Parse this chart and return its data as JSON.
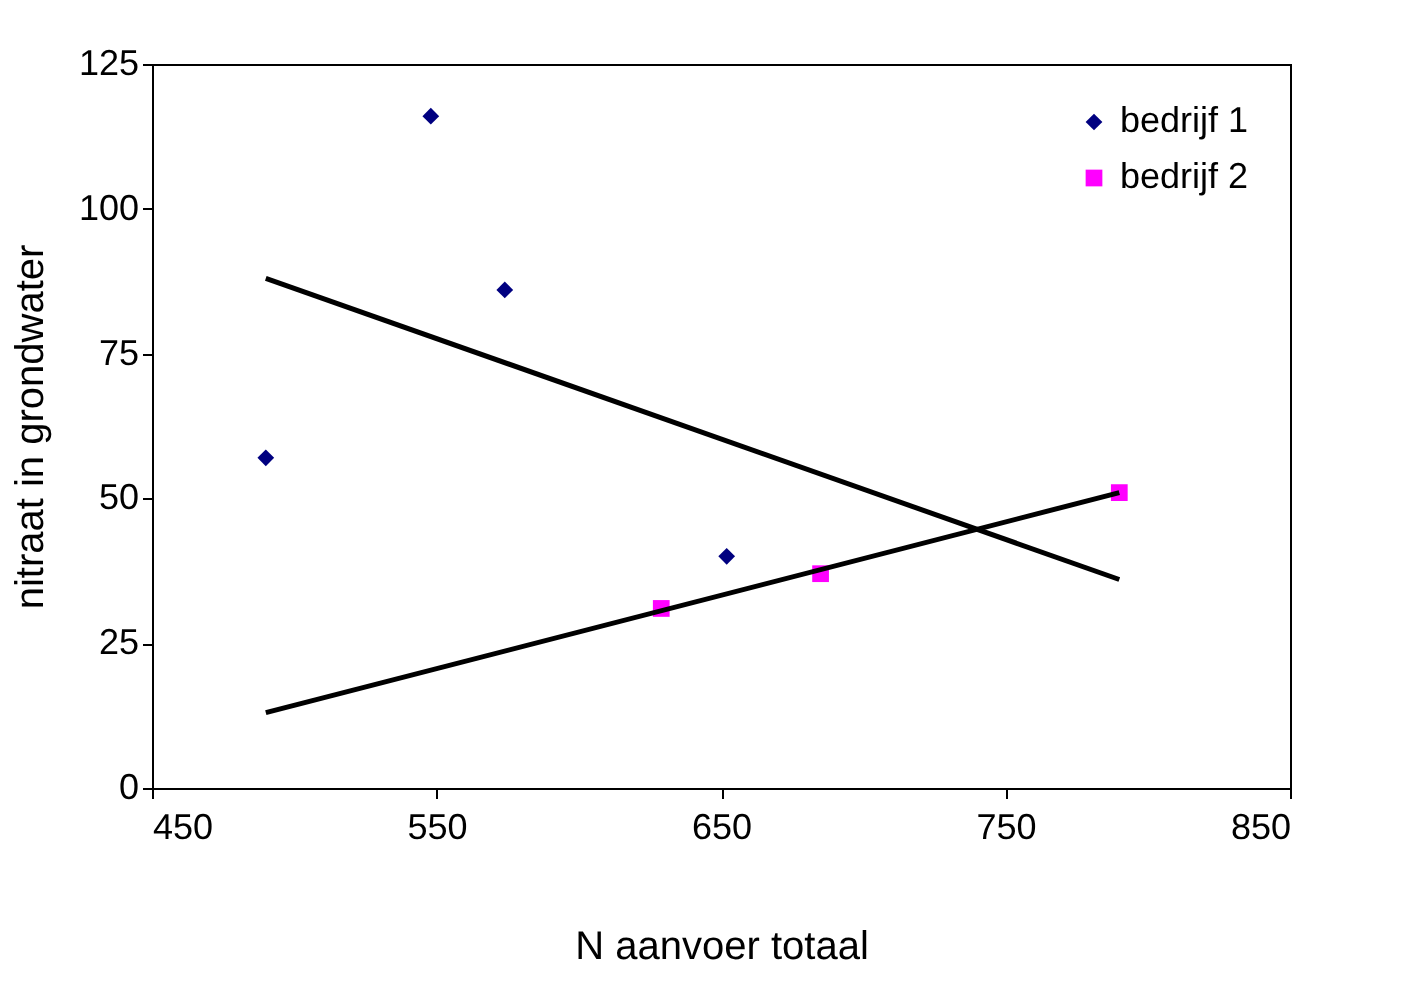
{
  "chart_data": {
    "type": "scatter",
    "xlabel": "N aanvoer totaal",
    "ylabel": "nitraat in grondwater",
    "xlim": [
      450,
      850
    ],
    "xticks": [
      450,
      550,
      650,
      750,
      850
    ],
    "ylim": [
      0,
      125
    ],
    "yticks": [
      0,
      25,
      50,
      75,
      100,
      125
    ],
    "grid": false,
    "legend": "top right",
    "series": [
      {
        "name": "bedrijf 1",
        "color": "#000080",
        "marker": "diamond",
        "x": [
          490,
          548,
          574,
          652
        ],
        "values": [
          57,
          116,
          86,
          40
        ]
      },
      {
        "name": "bedrijf 2",
        "color": "#ff00ff",
        "marker": "square",
        "x": [
          629,
          685,
          790
        ],
        "values": [
          31,
          37,
          51
        ]
      },
      {
        "type": "line",
        "color": "#000000",
        "x": [
          490,
          790
        ],
        "values": [
          88,
          36
        ]
      },
      {
        "type": "line",
        "color": "#000000",
        "x": [
          490,
          790
        ],
        "values": [
          13,
          51
        ]
      }
    ]
  }
}
